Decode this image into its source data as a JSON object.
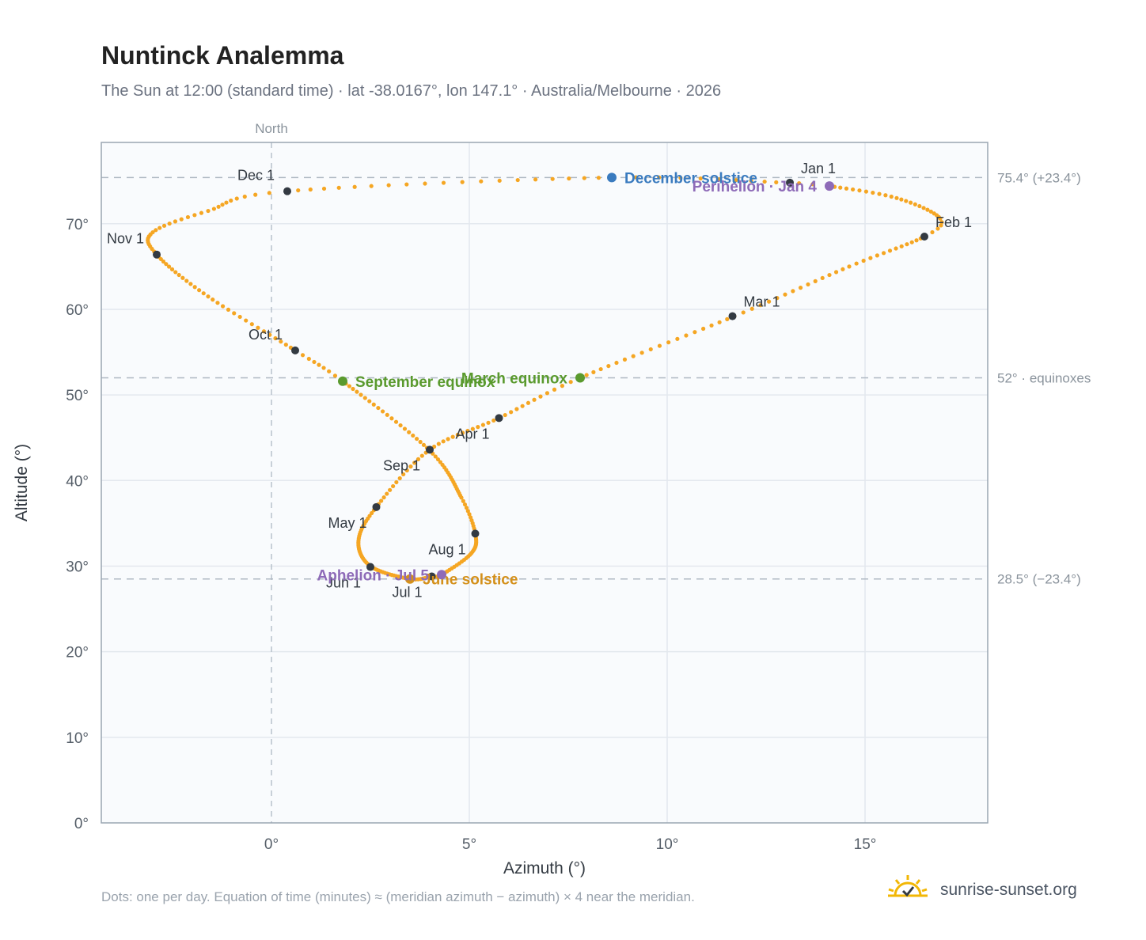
{
  "header": {
    "title": "Nuntinck Analemma",
    "subtitle": "The Sun at 12:00 (standard time) · lat -38.0167°, lon 147.1° · Australia/Melbourne · 2026"
  },
  "footer": {
    "note": "Dots: one per day. Equation of time (minutes) ≈ (meridian azimuth − azimuth) × 4 near the meridian.",
    "brand": "sunrise-sunset.org"
  },
  "colors": {
    "curve": "#f5a623",
    "month_point": "#333a42",
    "december_solstice": "#3a7bbf",
    "june_solstice": "#d4901a",
    "equinox": "#5a9a2e",
    "perihelion_aphelion": "#8e6bb8",
    "plot_background": "#f9fbfd",
    "grid": "#e3e8ee"
  },
  "chart_data": {
    "type": "scatter",
    "xlabel": "Azimuth (°)",
    "ylabel": "Altitude (°)",
    "xlim": [
      -4.3,
      18.1
    ],
    "ylim": [
      0,
      79.5
    ],
    "xticks": [
      {
        "v": 0,
        "label": "0°"
      },
      {
        "v": 5,
        "label": "5°"
      },
      {
        "v": 10,
        "label": "10°"
      },
      {
        "v": 15,
        "label": "15°"
      }
    ],
    "yticks": [
      {
        "v": 0,
        "label": "0°"
      },
      {
        "v": 10,
        "label": "10°"
      },
      {
        "v": 20,
        "label": "20°"
      },
      {
        "v": 30,
        "label": "30°"
      },
      {
        "v": 40,
        "label": "40°"
      },
      {
        "v": 50,
        "label": "50°"
      },
      {
        "v": 60,
        "label": "60°"
      },
      {
        "v": 70,
        "label": "70°"
      }
    ],
    "grid": true,
    "meridian": {
      "x": 0,
      "label": "North"
    },
    "reference_lines": [
      {
        "y": 75.4,
        "label": "75.4° (+23.4°)"
      },
      {
        "y": 52.0,
        "label": "52° · equinoxes"
      },
      {
        "y": 28.5,
        "label": "28.5° (−23.4°)"
      }
    ],
    "daily_points_keyframes": [
      {
        "day": 1,
        "x": 13.1,
        "y": 74.8
      },
      {
        "day": 4,
        "x": 14.1,
        "y": 74.4
      },
      {
        "day": 15,
        "x": 15.8,
        "y": 73.0
      },
      {
        "day": 27,
        "x": 16.9,
        "y": 70.6
      },
      {
        "day": 32,
        "x": 16.5,
        "y": 68.5
      },
      {
        "day": 45,
        "x": 14.6,
        "y": 65.0
      },
      {
        "day": 60,
        "x": 11.7,
        "y": 59.2
      },
      {
        "day": 79,
        "x": 7.8,
        "y": 52.0
      },
      {
        "day": 91,
        "x": 5.75,
        "y": 47.3
      },
      {
        "day": 105,
        "x": 4.0,
        "y": 43.6
      },
      {
        "day": 121,
        "x": 2.65,
        "y": 36.9
      },
      {
        "day": 135,
        "x": 2.2,
        "y": 33.0
      },
      {
        "day": 152,
        "x": 2.5,
        "y": 30.0
      },
      {
        "day": 172,
        "x": 3.5,
        "y": 28.5
      },
      {
        "day": 182,
        "x": 4.05,
        "y": 28.8
      },
      {
        "day": 186,
        "x": 4.3,
        "y": 29.0
      },
      {
        "day": 200,
        "x": 5.05,
        "y": 31.5
      },
      {
        "day": 213,
        "x": 5.15,
        "y": 33.8
      },
      {
        "day": 225,
        "x": 4.8,
        "y": 38.0
      },
      {
        "day": 244,
        "x": 4.0,
        "y": 43.5
      },
      {
        "day": 266,
        "x": 1.8,
        "y": 51.6
      },
      {
        "day": 274,
        "x": 0.6,
        "y": 55.2
      },
      {
        "day": 290,
        "x": -1.6,
        "y": 61.5
      },
      {
        "day": 305,
        "x": -2.9,
        "y": 66.4
      },
      {
        "day": 315,
        "x": -3.0,
        "y": 69.0
      },
      {
        "day": 325,
        "x": -1.6,
        "y": 71.5
      },
      {
        "day": 335,
        "x": 0.4,
        "y": 73.8
      },
      {
        "day": 355,
        "x": 8.6,
        "y": 75.4
      },
      {
        "day": 365,
        "x": 13.0,
        "y": 74.8
      }
    ],
    "month_points": [
      {
        "label": "Jan 1",
        "x": 13.1,
        "y": 74.8,
        "label_pos": "above-right"
      },
      {
        "label": "Feb 1",
        "x": 16.5,
        "y": 68.5,
        "label_pos": "above-right"
      },
      {
        "label": "Mar 1",
        "x": 11.65,
        "y": 59.2,
        "label_pos": "above-right"
      },
      {
        "label": "Apr 1",
        "x": 5.75,
        "y": 47.3,
        "label_pos": "below-left"
      },
      {
        "label": "May 1",
        "x": 2.65,
        "y": 36.9,
        "label_pos": "below-left"
      },
      {
        "label": "Jun 1",
        "x": 2.5,
        "y": 29.9,
        "label_pos": "below-left"
      },
      {
        "label": "Jul 1",
        "x": 4.05,
        "y": 28.8,
        "label_pos": "below-left"
      },
      {
        "label": "Aug 1",
        "x": 5.15,
        "y": 33.8,
        "label_pos": "below-left"
      },
      {
        "label": "Sep 1",
        "x": 4.0,
        "y": 43.6,
        "label_pos": "below-left"
      },
      {
        "label": "Oct 1",
        "x": 0.6,
        "y": 55.2,
        "label_pos": "above-left"
      },
      {
        "label": "Nov 1",
        "x": -2.9,
        "y": 66.4,
        "label_pos": "above-left"
      },
      {
        "label": "Dec 1",
        "x": 0.4,
        "y": 73.8,
        "label_pos": "above-left"
      }
    ],
    "events": [
      {
        "label": "December solstice",
        "x": 8.6,
        "y": 75.4,
        "color_key": "december_solstice",
        "label_pos": "right"
      },
      {
        "label": "Perihelion · Jan 4",
        "x": 14.1,
        "y": 74.4,
        "color_key": "perihelion_aphelion",
        "label_pos": "left"
      },
      {
        "label": "March equinox",
        "x": 7.8,
        "y": 52.0,
        "color_key": "equinox",
        "label_pos": "left"
      },
      {
        "label": "September equinox",
        "x": 1.8,
        "y": 51.6,
        "color_key": "equinox",
        "label_pos": "right"
      },
      {
        "label": "June solstice",
        "x": 3.5,
        "y": 28.5,
        "color_key": "june_solstice",
        "label_pos": "right"
      },
      {
        "label": "Aphelion · Jul 5",
        "x": 4.3,
        "y": 29.0,
        "color_key": "perihelion_aphelion",
        "label_pos": "left"
      }
    ]
  }
}
